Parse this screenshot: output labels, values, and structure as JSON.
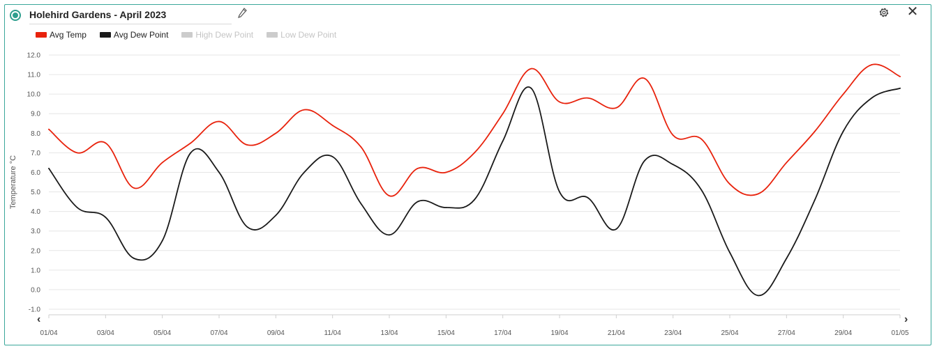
{
  "header": {
    "title": "Holehird Gardens - April 2023",
    "icons": {
      "radio": "radio-selected-icon",
      "edit": "pencil-icon",
      "settings": "gear-icon",
      "close": "close-icon"
    },
    "close_glyph": "✕"
  },
  "nav": {
    "prev": "‹",
    "next": "›"
  },
  "colors": {
    "accent": "#2e9e8e",
    "avg_temp": "#e8220c",
    "avg_dew": "#1a1a1a",
    "hidden": "#cccccc"
  },
  "chart_data": {
    "type": "line",
    "ylabel": "Temperature °C",
    "ylim": [
      -1.0,
      12.0
    ],
    "yticks": [
      "12.0",
      "11.0",
      "10.0",
      "9.0",
      "8.0",
      "7.0",
      "6.0",
      "5.0",
      "4.0",
      "3.0",
      "2.0",
      "1.0",
      "0.0",
      "-1.0"
    ],
    "xticks": [
      "01/04",
      "03/04",
      "05/04",
      "07/04",
      "09/04",
      "11/04",
      "13/04",
      "15/04",
      "17/04",
      "19/04",
      "21/04",
      "23/04",
      "25/04",
      "27/04",
      "29/04",
      "01/05"
    ],
    "legend_position": "top-left",
    "grid": true,
    "series": [
      {
        "name": "Avg Temp",
        "visible": true,
        "values": [
          8.2,
          7.0,
          7.5,
          5.2,
          6.5,
          7.5,
          8.6,
          7.4,
          8.0,
          9.2,
          8.4,
          7.3,
          4.8,
          6.2,
          6.0,
          7.0,
          9.0,
          11.3,
          9.6,
          9.8,
          9.3,
          10.8,
          7.9,
          7.7,
          5.4,
          4.9,
          6.5,
          8.1,
          10.0,
          11.5,
          10.9
        ]
      },
      {
        "name": "Avg Dew Point",
        "visible": true,
        "values": [
          6.2,
          4.2,
          3.7,
          1.6,
          2.5,
          7.0,
          6.0,
          3.2,
          3.8,
          6.0,
          6.8,
          4.4,
          2.8,
          4.5,
          4.2,
          4.6,
          7.6,
          10.3,
          5.0,
          4.7,
          3.1,
          6.6,
          6.4,
          5.1,
          1.9,
          -0.3,
          1.6,
          4.6,
          8.1,
          9.8,
          10.3
        ]
      },
      {
        "name": "High Dew Point",
        "visible": false,
        "values": []
      },
      {
        "name": "Low Dew Point",
        "visible": false,
        "values": []
      }
    ]
  }
}
